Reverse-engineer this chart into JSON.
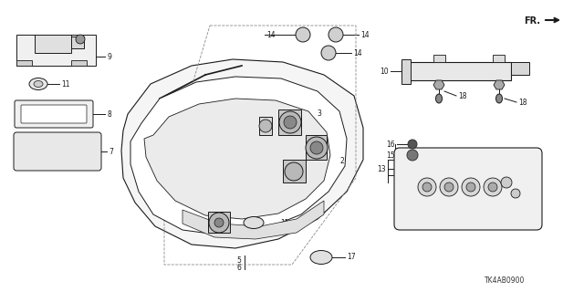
{
  "bg_color": "#ffffff",
  "diagram_code": "TK4AB0900",
  "dark": "#1a1a1a",
  "gray": "#888888",
  "lgray": "#cccccc",
  "fs": 5.5
}
